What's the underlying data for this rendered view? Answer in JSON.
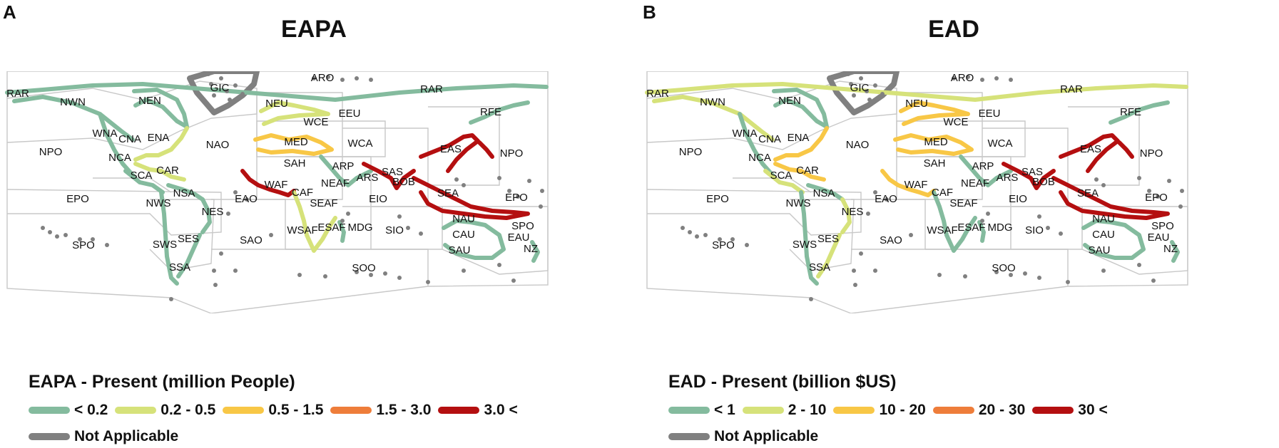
{
  "colors": {
    "lt_low": "#84bb9e",
    "low_mid": "#d6e27a",
    "mid": "#f8c746",
    "high_mid": "#ee7d3a",
    "high": "#b40f10",
    "na": "#808080",
    "boundary": "#c8c8c8"
  },
  "panels": [
    {
      "letter": "A",
      "title": "EAPA",
      "legend_title": "EAPA - Present (million People)",
      "legend": [
        {
          "label": "< 0.2",
          "color": "#84bb9e"
        },
        {
          "label": "0.2 - 0.5",
          "color": "#d6e27a"
        },
        {
          "label": "0.5 - 1.5",
          "color": "#f8c746"
        },
        {
          "label": "1.5 - 3.0",
          "color": "#ee7d3a"
        },
        {
          "label": "3.0 <",
          "color": "#b40f10"
        }
      ],
      "na_label": "Not Applicable",
      "regions": [
        {
          "id": "RAR",
          "class": "lt_low"
        },
        {
          "id": "NWN",
          "class": "lt_low"
        },
        {
          "id": "NEN",
          "class": "lt_low"
        },
        {
          "id": "GIC",
          "class": "na"
        },
        {
          "id": "ARO",
          "class": "na"
        },
        {
          "id": "NEU",
          "class": "low_mid"
        },
        {
          "id": "MED",
          "class": "mid"
        },
        {
          "id": "WAF",
          "class": "high"
        },
        {
          "id": "SAS",
          "class": "high"
        },
        {
          "id": "BOB",
          "class": "high"
        },
        {
          "id": "EAS",
          "class": "high"
        },
        {
          "id": "SEA",
          "class": "high"
        },
        {
          "id": "ENA",
          "class": "low_mid"
        },
        {
          "id": "CAR",
          "class": "low_mid"
        },
        {
          "id": "ESAF",
          "class": "low_mid"
        }
      ]
    },
    {
      "letter": "B",
      "title": "EAD",
      "legend_title": "EAD - Present (billion $US)",
      "legend": [
        {
          "label": "< 1",
          "color": "#84bb9e"
        },
        {
          "label": "2 - 10",
          "color": "#d6e27a"
        },
        {
          "label": "10 - 20",
          "color": "#f8c746"
        },
        {
          "label": "20 - 30",
          "color": "#ee7d3a"
        },
        {
          "label": "30 <",
          "color": "#b40f10"
        }
      ],
      "na_label": "Not Applicable",
      "regions": [
        {
          "id": "RAR",
          "class": "low_mid"
        },
        {
          "id": "NWN",
          "class": "low_mid"
        },
        {
          "id": "NEN",
          "class": "lt_low"
        },
        {
          "id": "GIC",
          "class": "na"
        },
        {
          "id": "ARO",
          "class": "na"
        },
        {
          "id": "NEU",
          "class": "mid"
        },
        {
          "id": "MED",
          "class": "mid"
        },
        {
          "id": "WAF",
          "class": "mid"
        },
        {
          "id": "SAS",
          "class": "high"
        },
        {
          "id": "BOB",
          "class": "high"
        },
        {
          "id": "EAS",
          "class": "high"
        },
        {
          "id": "SEA",
          "class": "high"
        },
        {
          "id": "ENA",
          "class": "mid"
        },
        {
          "id": "CAR",
          "class": "mid"
        },
        {
          "id": "SCA",
          "class": "low_mid"
        },
        {
          "id": "NES",
          "class": "low_mid"
        },
        {
          "id": "SES",
          "class": "low_mid"
        },
        {
          "id": "EAU",
          "class": "low_mid"
        }
      ]
    }
  ],
  "region_labels": [
    "ARO",
    "RAR",
    "GIC",
    "RAR",
    "NWN",
    "NEN",
    "NEU",
    "EEU",
    "RFE",
    "WNA",
    "CNA",
    "ENA",
    "WCE",
    "NAO",
    "MED",
    "WCA",
    "EAS",
    "NPO",
    "NPO",
    "NCA",
    "SAH",
    "ARP",
    "SAS",
    "CAR",
    "SCA",
    "ARS",
    "BOB",
    "WAF",
    "CAF",
    "NEAF",
    "EIO",
    "SEA",
    "EPO",
    "NSA",
    "EAO",
    "EPO",
    "NWS",
    "NES",
    "SEAF",
    "SPO",
    "NAU",
    "CAU",
    "EAU",
    "WSAF",
    "ESAF",
    "MDG",
    "SIO",
    "SPO",
    "SES",
    "SAO",
    "SWS",
    "SAU",
    "NZ",
    "SSA",
    "SOO"
  ]
}
